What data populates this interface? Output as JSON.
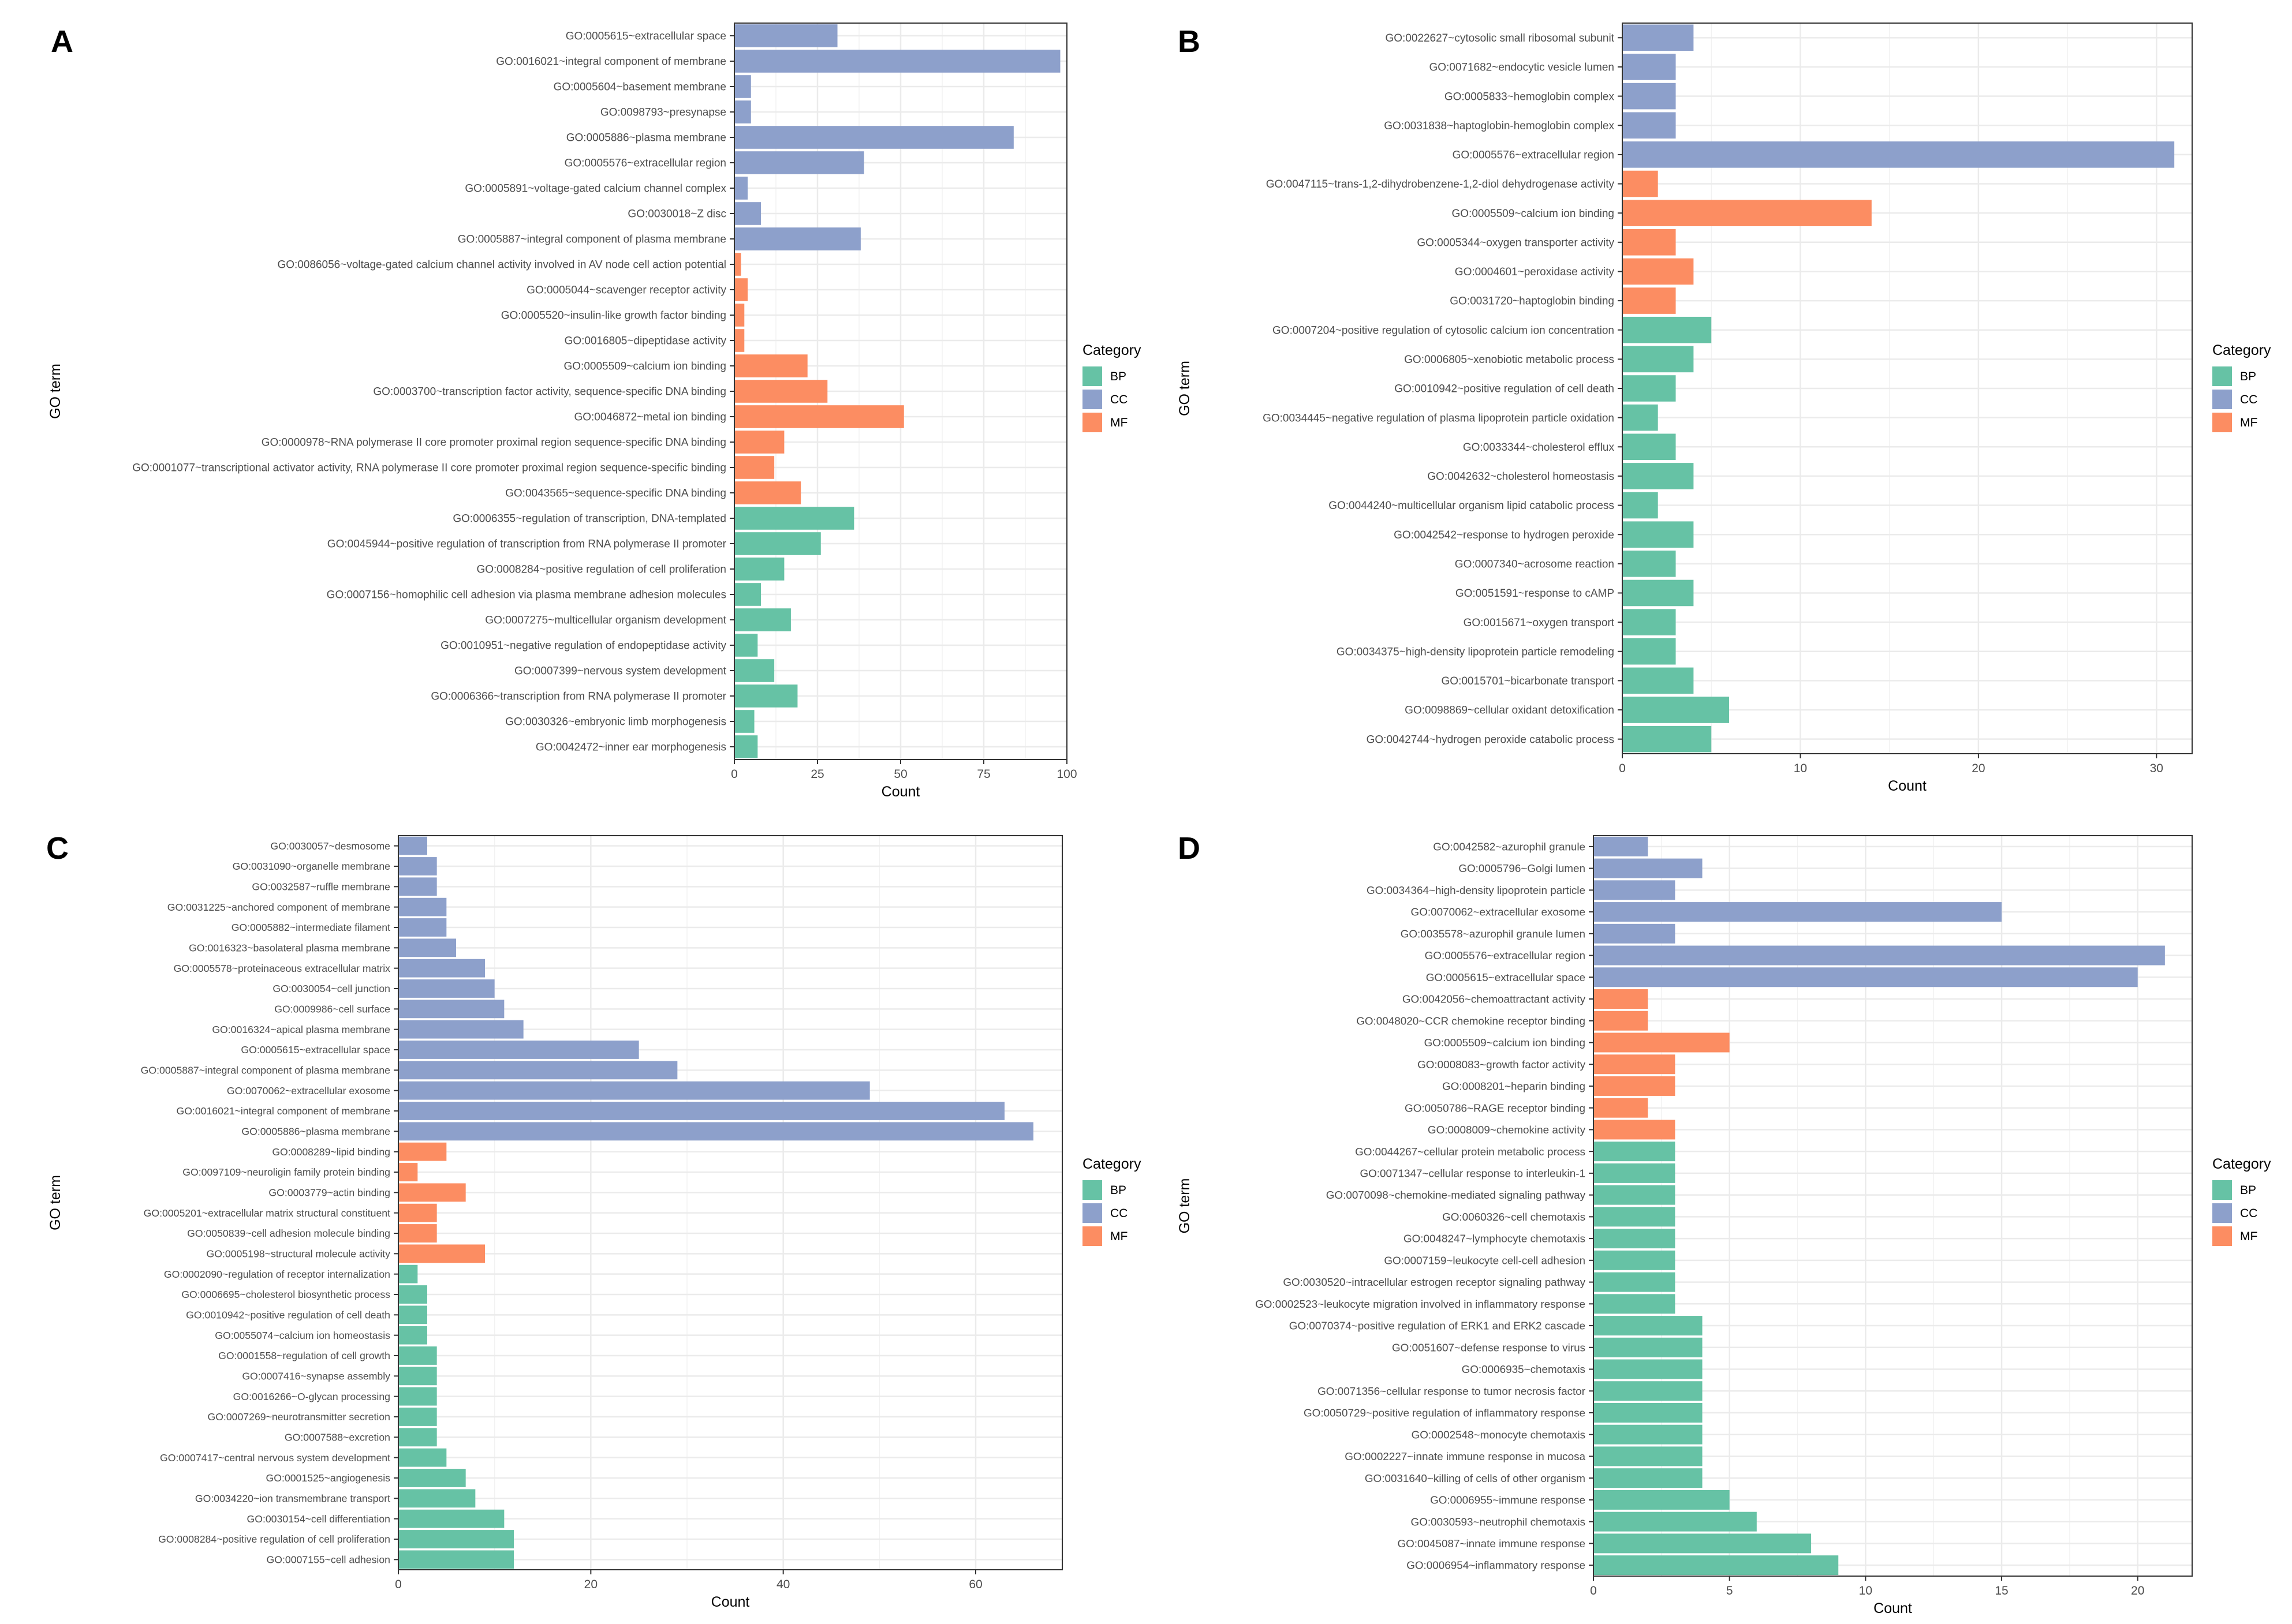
{
  "colors": {
    "BP": "#66C2A5",
    "CC": "#8DA0CB",
    "MF": "#FC8D62",
    "panel_bg": "#FFFFFF",
    "grid": "#EBEBEB",
    "axis": "#333333"
  },
  "chart_data": [
    {
      "panel": "A",
      "type": "bar",
      "orientation": "horizontal",
      "xlabel": "Count",
      "ylabel": "GO term",
      "xlim": [
        0,
        100
      ],
      "xticks": [
        0,
        25,
        50,
        75,
        100
      ],
      "legend": {
        "title": "Category",
        "entries": [
          "BP",
          "CC",
          "MF"
        ],
        "position": "right"
      },
      "categories": [
        "GO:0005615~extracellular space",
        "GO:0016021~integral component of membrane",
        "GO:0005604~basement membrane",
        "GO:0098793~presynapse",
        "GO:0005886~plasma membrane",
        "GO:0005576~extracellular region",
        "GO:0005891~voltage-gated calcium channel complex",
        "GO:0030018~Z disc",
        "GO:0005887~integral component of plasma membrane",
        "GO:0086056~voltage-gated calcium channel activity involved in AV node cell action potential",
        "GO:0005044~scavenger receptor activity",
        "GO:0005520~insulin-like growth factor binding",
        "GO:0016805~dipeptidase activity",
        "GO:0005509~calcium ion binding",
        "GO:0003700~transcription factor activity, sequence-specific DNA binding",
        "GO:0046872~metal ion binding",
        "GO:0000978~RNA polymerase II core promoter proximal region sequence-specific DNA binding",
        "GO:0001077~transcriptional activator activity, RNA polymerase II core promoter proximal region sequence-specific binding",
        "GO:0043565~sequence-specific DNA binding",
        "GO:0006355~regulation of transcription, DNA-templated",
        "GO:0045944~positive regulation of transcription from RNA polymerase II promoter",
        "GO:0008284~positive regulation of cell proliferation",
        "GO:0007156~homophilic cell adhesion via plasma membrane adhesion molecules",
        "GO:0007275~multicellular organism development",
        "GO:0010951~negative regulation of endopeptidase activity",
        "GO:0007399~nervous system development",
        "GO:0006366~transcription from RNA polymerase II promoter",
        "GO:0030326~embryonic limb morphogenesis",
        "GO:0042472~inner ear morphogenesis"
      ],
      "values": [
        31,
        98,
        5,
        5,
        84,
        39,
        4,
        8,
        38,
        2,
        4,
        3,
        3,
        22,
        28,
        51,
        15,
        12,
        20,
        36,
        26,
        15,
        8,
        17,
        7,
        12,
        19,
        6,
        7
      ],
      "groups": [
        "CC",
        "CC",
        "CC",
        "CC",
        "CC",
        "CC",
        "CC",
        "CC",
        "CC",
        "MF",
        "MF",
        "MF",
        "MF",
        "MF",
        "MF",
        "MF",
        "MF",
        "MF",
        "MF",
        "BP",
        "BP",
        "BP",
        "BP",
        "BP",
        "BP",
        "BP",
        "BP",
        "BP",
        "BP"
      ]
    },
    {
      "panel": "B",
      "type": "bar",
      "orientation": "horizontal",
      "xlabel": "Count",
      "ylabel": "GO term",
      "xlim": [
        0,
        32
      ],
      "xticks": [
        0,
        10,
        20,
        30
      ],
      "legend": {
        "title": "Category",
        "entries": [
          "BP",
          "CC",
          "MF"
        ],
        "position": "right"
      },
      "categories": [
        "GO:0022627~cytosolic small ribosomal subunit",
        "GO:0071682~endocytic vesicle lumen",
        "GO:0005833~hemoglobin complex",
        "GO:0031838~haptoglobin-hemoglobin complex",
        "GO:0005576~extracellular region",
        "GO:0047115~trans-1,2-dihydrobenzene-1,2-diol dehydrogenase activity",
        "GO:0005509~calcium ion binding",
        "GO:0005344~oxygen transporter activity",
        "GO:0004601~peroxidase activity",
        "GO:0031720~haptoglobin binding",
        "GO:0007204~positive regulation of cytosolic calcium ion concentration",
        "GO:0006805~xenobiotic metabolic process",
        "GO:0010942~positive regulation of cell death",
        "GO:0034445~negative regulation of plasma lipoprotein particle oxidation",
        "GO:0033344~cholesterol efflux",
        "GO:0042632~cholesterol homeostasis",
        "GO:0044240~multicellular organism lipid catabolic process",
        "GO:0042542~response to hydrogen peroxide",
        "GO:0007340~acrosome reaction",
        "GO:0051591~response to cAMP",
        "GO:0015671~oxygen transport",
        "GO:0034375~high-density lipoprotein particle remodeling",
        "GO:0015701~bicarbonate transport",
        "GO:0098869~cellular oxidant detoxification",
        "GO:0042744~hydrogen peroxide catabolic process"
      ],
      "values": [
        4,
        3,
        3,
        3,
        31,
        2,
        14,
        3,
        4,
        3,
        5,
        4,
        3,
        2,
        3,
        4,
        2,
        4,
        3,
        4,
        3,
        3,
        4,
        6,
        5
      ],
      "groups": [
        "CC",
        "CC",
        "CC",
        "CC",
        "CC",
        "MF",
        "MF",
        "MF",
        "MF",
        "MF",
        "BP",
        "BP",
        "BP",
        "BP",
        "BP",
        "BP",
        "BP",
        "BP",
        "BP",
        "BP",
        "BP",
        "BP",
        "BP",
        "BP",
        "BP"
      ]
    },
    {
      "panel": "C",
      "type": "bar",
      "orientation": "horizontal",
      "xlabel": "Count",
      "ylabel": "GO term",
      "xlim": [
        0,
        69
      ],
      "xticks": [
        0,
        20,
        40,
        60
      ],
      "legend": {
        "title": "Category",
        "entries": [
          "BP",
          "CC",
          "MF"
        ],
        "position": "right"
      },
      "categories": [
        "GO:0030057~desmosome",
        "GO:0031090~organelle membrane",
        "GO:0032587~ruffle membrane",
        "GO:0031225~anchored component of membrane",
        "GO:0005882~intermediate filament",
        "GO:0016323~basolateral plasma membrane",
        "GO:0005578~proteinaceous extracellular matrix",
        "GO:0030054~cell junction",
        "GO:0009986~cell surface",
        "GO:0016324~apical plasma membrane",
        "GO:0005615~extracellular space",
        "GO:0005887~integral component of plasma membrane",
        "GO:0070062~extracellular exosome",
        "GO:0016021~integral component of membrane",
        "GO:0005886~plasma membrane",
        "GO:0008289~lipid binding",
        "GO:0097109~neuroligin family protein binding",
        "GO:0003779~actin binding",
        "GO:0005201~extracellular matrix structural constituent",
        "GO:0050839~cell adhesion molecule binding",
        "GO:0005198~structural molecule activity",
        "GO:0002090~regulation of receptor internalization",
        "GO:0006695~cholesterol biosynthetic process",
        "GO:0010942~positive regulation of cell death",
        "GO:0055074~calcium ion homeostasis",
        "GO:0001558~regulation of cell growth",
        "GO:0007416~synapse assembly",
        "GO:0016266~O-glycan processing",
        "GO:0007269~neurotransmitter secretion",
        "GO:0007588~excretion",
        "GO:0007417~central nervous system development",
        "GO:0001525~angiogenesis",
        "GO:0034220~ion transmembrane transport",
        "GO:0030154~cell differentiation",
        "GO:0008284~positive regulation of cell proliferation",
        "GO:0007155~cell adhesion"
      ],
      "values": [
        3,
        4,
        4,
        5,
        5,
        6,
        9,
        10,
        11,
        13,
        25,
        29,
        49,
        63,
        66,
        5,
        2,
        7,
        4,
        4,
        9,
        2,
        3,
        3,
        3,
        4,
        4,
        4,
        4,
        4,
        5,
        7,
        8,
        11,
        12,
        12
      ],
      "groups": [
        "CC",
        "CC",
        "CC",
        "CC",
        "CC",
        "CC",
        "CC",
        "CC",
        "CC",
        "CC",
        "CC",
        "CC",
        "CC",
        "CC",
        "CC",
        "MF",
        "MF",
        "MF",
        "MF",
        "MF",
        "MF",
        "BP",
        "BP",
        "BP",
        "BP",
        "BP",
        "BP",
        "BP",
        "BP",
        "BP",
        "BP",
        "BP",
        "BP",
        "BP",
        "BP",
        "BP"
      ]
    },
    {
      "panel": "D",
      "type": "bar",
      "orientation": "horizontal",
      "xlabel": "Count",
      "ylabel": "GO term",
      "xlim": [
        0,
        22
      ],
      "xticks": [
        0,
        5,
        10,
        15,
        20
      ],
      "legend": {
        "title": "Category",
        "entries": [
          "BP",
          "CC",
          "MF"
        ],
        "position": "right"
      },
      "categories": [
        "GO:0042582~azurophil granule",
        "GO:0005796~Golgi lumen",
        "GO:0034364~high-density lipoprotein particle",
        "GO:0070062~extracellular exosome",
        "GO:0035578~azurophil granule lumen",
        "GO:0005576~extracellular region",
        "GO:0005615~extracellular space",
        "GO:0042056~chemoattractant activity",
        "GO:0048020~CCR chemokine receptor binding",
        "GO:0005509~calcium ion binding",
        "GO:0008083~growth factor activity",
        "GO:0008201~heparin binding",
        "GO:0050786~RAGE receptor binding",
        "GO:0008009~chemokine activity",
        "GO:0044267~cellular protein metabolic process",
        "GO:0071347~cellular response to interleukin-1",
        "GO:0070098~chemokine-mediated signaling pathway",
        "GO:0060326~cell chemotaxis",
        "GO:0048247~lymphocyte chemotaxis",
        "GO:0007159~leukocyte cell-cell adhesion",
        "GO:0030520~intracellular estrogen receptor signaling pathway",
        "GO:0002523~leukocyte migration involved in inflammatory response",
        "GO:0070374~positive regulation of ERK1 and ERK2 cascade",
        "GO:0051607~defense response to virus",
        "GO:0006935~chemotaxis",
        "GO:0071356~cellular response to tumor necrosis factor",
        "GO:0050729~positive regulation of inflammatory response",
        "GO:0002548~monocyte chemotaxis",
        "GO:0002227~innate immune response in mucosa",
        "GO:0031640~killing of cells of other organism",
        "GO:0006955~immune response",
        "GO:0030593~neutrophil chemotaxis",
        "GO:0045087~innate immune response",
        "GO:0006954~inflammatory response"
      ],
      "values": [
        2,
        4,
        3,
        15,
        3,
        21,
        20,
        2,
        2,
        5,
        3,
        3,
        2,
        3,
        3,
        3,
        3,
        3,
        3,
        3,
        3,
        3,
        4,
        4,
        4,
        4,
        4,
        4,
        4,
        4,
        5,
        6,
        8,
        9
      ],
      "groups": [
        "CC",
        "CC",
        "CC",
        "CC",
        "CC",
        "CC",
        "CC",
        "MF",
        "MF",
        "MF",
        "MF",
        "MF",
        "MF",
        "MF",
        "BP",
        "BP",
        "BP",
        "BP",
        "BP",
        "BP",
        "BP",
        "BP",
        "BP",
        "BP",
        "BP",
        "BP",
        "BP",
        "BP",
        "BP",
        "BP",
        "BP",
        "BP",
        "BP",
        "BP"
      ]
    }
  ]
}
